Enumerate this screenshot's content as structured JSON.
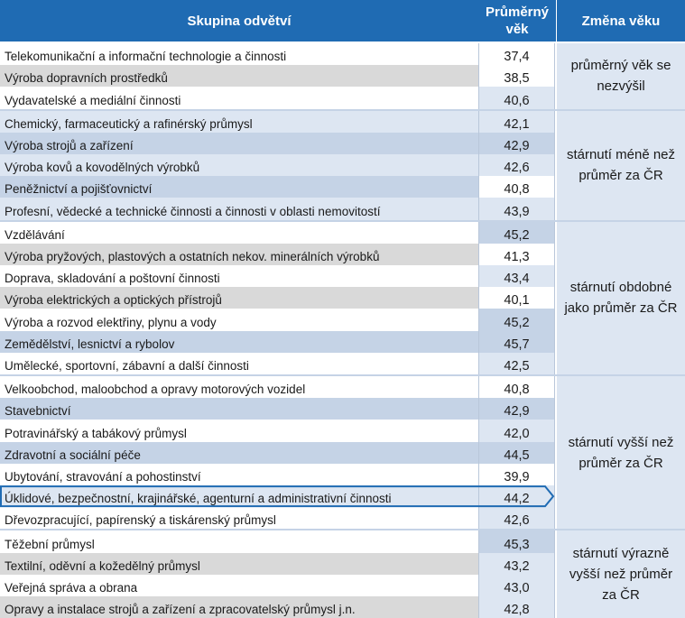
{
  "header": {
    "col_name": "Skupina odvětví",
    "col_value": "Průměrný věk",
    "col_change": "Změna věku"
  },
  "colors": {
    "header": "#1f6bb3",
    "row_white": "#ffffff",
    "row_gray": "#d9d9d9",
    "row_blue": "#c5d3e6",
    "row_light": "#dde6f2",
    "highlight_border": "#1f6bb3"
  },
  "groups": [
    {
      "label": "průměrný věk se nezvýšil",
      "rows": [
        0,
        1,
        2
      ]
    },
    {
      "label": "stárnutí méně než průměr za ČR",
      "rows": [
        3,
        4,
        5,
        6,
        7
      ]
    },
    {
      "label": "stárnutí obdobné jako průměr za ČR",
      "rows": [
        8,
        9,
        10,
        11,
        12,
        13,
        14
      ]
    },
    {
      "label": "stárnutí vyšší než průměr za ČR",
      "rows": [
        15,
        16,
        17,
        18,
        19,
        20,
        21
      ]
    },
    {
      "label": "stárnutí výrazně vyšší než průměr za ČR",
      "rows": [
        22,
        23,
        24,
        25
      ]
    }
  ],
  "rows": [
    {
      "name": "Telekomunikační a informační technologie a činnosti",
      "value": "37,4",
      "name_bg": "white",
      "value_bg": "white"
    },
    {
      "name": "Výroba dopravních prostředků",
      "value": "38,5",
      "name_bg": "gray",
      "value_bg": "white"
    },
    {
      "name": "Vydavatelské a mediální činnosti",
      "value": "40,6",
      "name_bg": "white",
      "value_bg": "light"
    },
    {
      "name": "Chemický, farmaceutický a rafinérský průmysl",
      "value": "42,1",
      "name_bg": "light",
      "value_bg": "light"
    },
    {
      "name": "Výroba strojů a zařízení",
      "value": "42,9",
      "name_bg": "blue",
      "value_bg": "blue"
    },
    {
      "name": "Výroba kovů a kovodělných výrobků",
      "value": "42,6",
      "name_bg": "light",
      "value_bg": "light"
    },
    {
      "name": "Peněžnictví a pojišťovnictví",
      "value": "40,8",
      "name_bg": "blue",
      "value_bg": "white"
    },
    {
      "name": "Profesní, vědecké a technické činnosti a činnosti v oblasti nemovitostí",
      "value": "43,9",
      "name_bg": "light",
      "value_bg": "light"
    },
    {
      "name": "Vzdělávání",
      "value": "45,2",
      "name_bg": "white",
      "value_bg": "blue"
    },
    {
      "name": "Výroba pryžových, plastových a ostatních nekov. minerálních výrobků",
      "value": "41,3",
      "name_bg": "gray",
      "value_bg": "white"
    },
    {
      "name": "Doprava, skladování a poštovní činnosti",
      "value": "43,4",
      "name_bg": "white",
      "value_bg": "light"
    },
    {
      "name": "Výroba elektrických a optických přístrojů",
      "value": "40,1",
      "name_bg": "gray",
      "value_bg": "white"
    },
    {
      "name": "Výroba a rozvod elektřiny, plynu a vody",
      "value": "45,2",
      "name_bg": "white",
      "value_bg": "blue"
    },
    {
      "name": "Zemědělství, lesnictví a rybolov",
      "value": "45,7",
      "name_bg": "blue",
      "value_bg": "blue"
    },
    {
      "name": "Umělecké, sportovní, zábavní a další činnosti",
      "value": "42,5",
      "name_bg": "white",
      "value_bg": "light"
    },
    {
      "name": "Velkoobchod, maloobchod a opravy motorových vozidel",
      "value": "40,8",
      "name_bg": "white",
      "value_bg": "white"
    },
    {
      "name": "Stavebnictví",
      "value": "42,9",
      "name_bg": "blue",
      "value_bg": "blue"
    },
    {
      "name": "Potravinářský a tabákový průmysl",
      "value": "42,0",
      "name_bg": "white",
      "value_bg": "light"
    },
    {
      "name": "Zdravotní a sociální péče",
      "value": "44,5",
      "name_bg": "blue",
      "value_bg": "blue"
    },
    {
      "name": "Ubytování, stravování a pohostinství",
      "value": "39,9",
      "name_bg": "white",
      "value_bg": "white"
    },
    {
      "name": "Úklidové, bezpečnostní, krajinářské, agenturní a administrativní činnosti",
      "value": "44,2",
      "name_bg": "light",
      "value_bg": "light"
    },
    {
      "name": "Dřevozpracující, papírenský a tiskárenský průmysl",
      "value": "42,6",
      "name_bg": "white",
      "value_bg": "light"
    },
    {
      "name": "Těžební průmysl",
      "value": "45,3",
      "name_bg": "white",
      "value_bg": "blue"
    },
    {
      "name": "Textilní, oděvní a kožedělný průmysl",
      "value": "43,2",
      "name_bg": "gray",
      "value_bg": "light"
    },
    {
      "name": "Veřejná správa a obrana",
      "value": "43,0",
      "name_bg": "white",
      "value_bg": "light"
    },
    {
      "name": "Opravy a instalace strojů a zařízení a zpracovatelský průmysl j.n.",
      "value": "42,8",
      "name_bg": "gray",
      "value_bg": "light"
    }
  ],
  "highlighted_row": 20
}
